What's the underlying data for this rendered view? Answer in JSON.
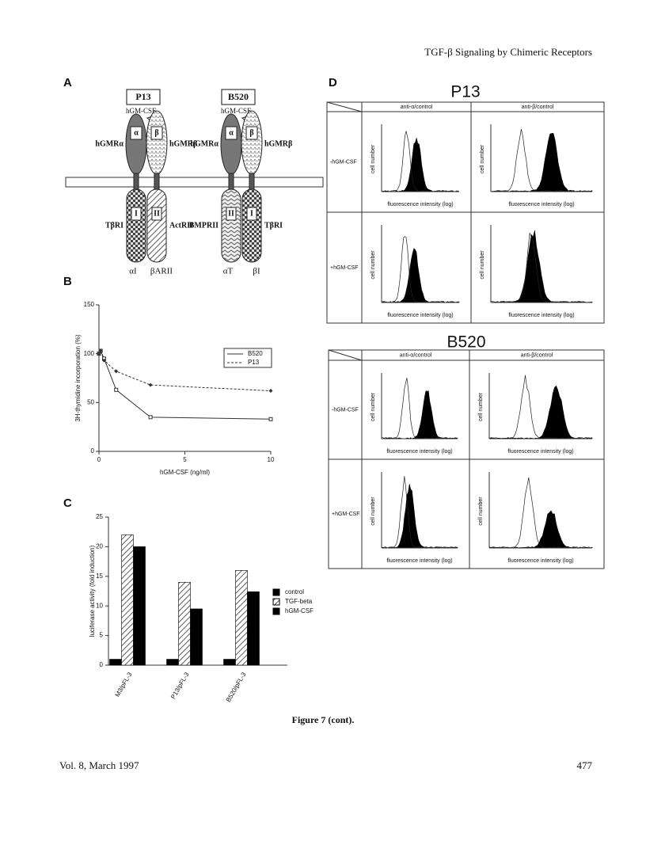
{
  "header": {
    "running_title": "TGF-β Signaling by Chimeric Receptors"
  },
  "panel_labels": [
    "A",
    "B",
    "C",
    "D"
  ],
  "diagram": {
    "constructs": [
      {
        "name": "P13",
        "ligand": "hGM-CSF",
        "ext_left": "hGMRα",
        "ext_left_mark": "α",
        "ext_right_mark": "β",
        "ext_right": "hGMRβ",
        "int_left": "TβRI",
        "int_left_mark": "I",
        "int_right_mark": "II",
        "int_right": "ActRII",
        "chain_left": "αI",
        "chain_right": "βARII"
      },
      {
        "name": "B520",
        "ligand": "hGM-CSF",
        "ext_left": "hGMRα",
        "ext_left_mark": "α",
        "ext_right_mark": "β",
        "ext_right": "hGMRβ",
        "int_left": "BMPRII",
        "int_left_mark": "II",
        "int_right_mark": "I",
        "int_right": "TβRI",
        "chain_left": "αT",
        "chain_right": "βI"
      }
    ]
  },
  "chart_data": [
    {
      "type": "line",
      "xlabel": "hGM-CSF (ng/ml)",
      "ylabel": "3H-thymidine incorporation (%)",
      "x": [
        0,
        0.1,
        0.3,
        1,
        3,
        10
      ],
      "series": [
        {
          "name": "B520",
          "color": "#333333",
          "marker": "square",
          "dash": false,
          "values": [
            100,
            103,
            95,
            63,
            35,
            33
          ]
        },
        {
          "name": "P13",
          "color": "#333333",
          "marker": "diamond",
          "dash": true,
          "values": [
            100,
            103,
            93,
            82,
            68,
            62
          ]
        }
      ],
      "xlim": [
        0,
        10
      ],
      "xticks": [
        0,
        5,
        10
      ],
      "ylim": [
        0,
        150
      ],
      "yticks": [
        0,
        50,
        100,
        150
      ],
      "legend": "upper right"
    },
    {
      "type": "bar",
      "ylabel": "luciferase activity (fold induction)",
      "categories": [
        "M3/pFL-3",
        "P13/pFL-3",
        "B520/pFL-3"
      ],
      "series": [
        {
          "name": "control",
          "color": "#000000",
          "fill": "solid",
          "values": [
            1,
            1,
            1
          ]
        },
        {
          "name": "TGF-beta",
          "color": "#000000",
          "fill": "hatch",
          "values": [
            22,
            14,
            16
          ]
        },
        {
          "name": "hGM-CSF",
          "color": "#000000",
          "fill": "solid",
          "values": [
            20,
            9.5,
            12.4
          ]
        }
      ],
      "ylim": [
        0,
        25
      ],
      "yticks": [
        0,
        5,
        10,
        15,
        20,
        25
      ],
      "legend": "right"
    }
  ],
  "panel_d": {
    "blocks": [
      {
        "title": "P13",
        "columns": [
          "anti-α/control",
          "anti-β/control"
        ],
        "rows": [
          {
            "label": "-hGM-CSF",
            "cells": [
              {
                "ylabel": "cell number",
                "xlabel": "fluorescence intensity (log)"
              },
              {
                "ylabel": "cell number",
                "xlabel": "fluorescence intensity (log)"
              }
            ]
          },
          {
            "label": "+hGM-CSF",
            "cells": [
              {
                "ylabel": "cell number",
                "xlabel": "fluorescence intensity (log)"
              },
              {
                "ylabel": "cell number",
                "xlabel": "fluorescence intensity (log)"
              }
            ]
          }
        ]
      },
      {
        "title": "B520",
        "columns": [
          "anti-α/control",
          "anti-β/control"
        ],
        "rows": [
          {
            "label": "-hGM-CSF",
            "cells": [
              {
                "ylabel": "cell number",
                "xlabel": "fluorescence intensity (log)"
              },
              {
                "ylabel": "cell number",
                "xlabel": "fluorescence intensity (log)"
              }
            ]
          },
          {
            "label": "+hGM-CSF",
            "cells": [
              {
                "ylabel": "cell number",
                "xlabel": "fluorescence intensity (log)"
              },
              {
                "ylabel": "cell number",
                "xlabel": "fluorescence intensity (log)"
              }
            ]
          }
        ]
      }
    ]
  },
  "caption": "Figure 7 (cont).",
  "footer": {
    "left": "Vol. 8, March 1997",
    "right": "477"
  }
}
